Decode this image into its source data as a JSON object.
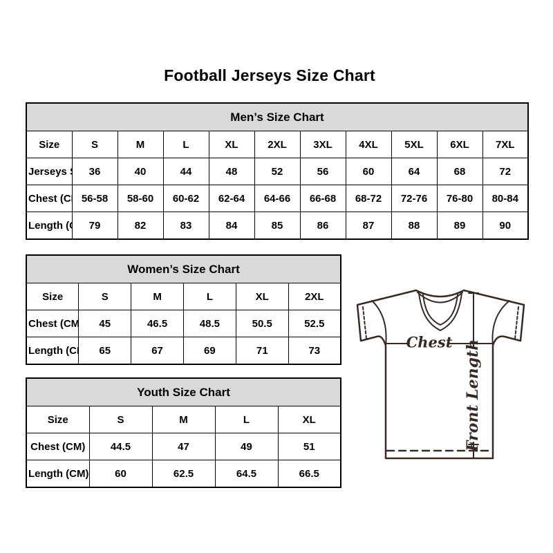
{
  "title": "Football Jerseys Size Chart",
  "tables": {
    "men": {
      "title": "Men’s Size Chart",
      "rows": [
        [
          "Size",
          "S",
          "M",
          "L",
          "XL",
          "2XL",
          "3XL",
          "4XL",
          "5XL",
          "6XL",
          "7XL"
        ],
        [
          "Jerseys Size",
          "36",
          "40",
          "44",
          "48",
          "52",
          "56",
          "60",
          "64",
          "68",
          "72"
        ],
        [
          "Chest (CM)",
          "56-58",
          "58-60",
          "60-62",
          "62-64",
          "64-66",
          "66-68",
          "68-72",
          "72-76",
          "76-80",
          "80-84"
        ],
        [
          "Length (CM)",
          "79",
          "82",
          "83",
          "84",
          "85",
          "86",
          "87",
          "88",
          "89",
          "90"
        ]
      ]
    },
    "women": {
      "title": "Women’s Size Chart",
      "rows": [
        [
          "Size",
          "S",
          "M",
          "L",
          "XL",
          "2XL"
        ],
        [
          "Chest (CM)",
          "45",
          "46.5",
          "48.5",
          "50.5",
          "52.5"
        ],
        [
          "Length (CM)",
          "65",
          "67",
          "69",
          "71",
          "73"
        ]
      ]
    },
    "youth": {
      "title": "Youth Size Chart",
      "rows": [
        [
          "Size",
          "S",
          "M",
          "L",
          "XL"
        ],
        [
          "Chest (CM)",
          "44.5",
          "47",
          "49",
          "51"
        ],
        [
          "Length (CM)",
          "60",
          "62.5",
          "64.5",
          "66.5"
        ]
      ]
    }
  },
  "diagram": {
    "chest_label": "Chest",
    "front_length_label": "Front Length"
  },
  "colors": {
    "table_header_bg": "#d9d9d9",
    "table_border": "#000000",
    "jersey_line": "#362a24",
    "text": "#000000",
    "background": "#ffffff"
  }
}
